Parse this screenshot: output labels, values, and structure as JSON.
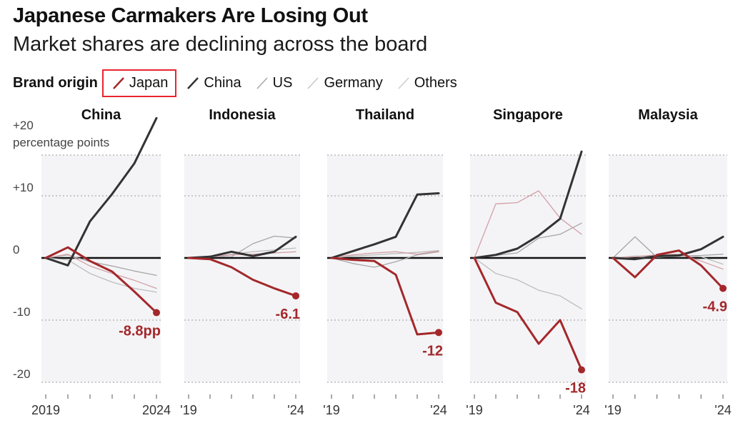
{
  "header": {
    "title": "Japanese Carmakers Are Losing Out",
    "subtitle": "Market shares are declining across the board"
  },
  "legend": {
    "title": "Brand origin",
    "items": [
      {
        "label": "Japan",
        "color": "#a3282b"
      },
      {
        "label": "China",
        "color": "#333333"
      },
      {
        "label": "US",
        "color": "#a6a6a6"
      },
      {
        "label": "Germany",
        "color": "#c7c7c7"
      },
      {
        "label": "Others",
        "color": "#cccccc"
      }
    ]
  },
  "chart_data": {
    "type": "line",
    "y_axis_unit": "percentage points",
    "ylim": [
      -20,
      20
    ],
    "y_ticks": [
      "+20",
      "+10",
      "0",
      "-10",
      "-20"
    ],
    "x": [
      2019,
      2020,
      2021,
      2022,
      2023,
      2024
    ],
    "colors": {
      "Japan": "#a3282b",
      "China": "#333333",
      "US": "#a6a6a6",
      "Germany": "#bdbdbd",
      "Others": "#d2a0a6"
    },
    "panels": [
      {
        "title": "China",
        "x_tick_labels": [
          "2019",
          "2024"
        ],
        "end_label": "-8.8pp",
        "series": [
          {
            "name": "Japan",
            "values": [
              0,
              1.7,
              -0.5,
              -2.2,
              -5.4,
              -8.8
            ]
          },
          {
            "name": "China",
            "values": [
              0,
              -1.2,
              5.9,
              10.3,
              15.2,
              22.5
            ]
          },
          {
            "name": "US",
            "values": [
              0,
              0.5,
              -0.6,
              -1.3,
              -2.1,
              -2.8
            ]
          },
          {
            "name": "Germany",
            "values": [
              0,
              -0.3,
              -2.5,
              -3.9,
              -4.9,
              -5.5
            ]
          },
          {
            "name": "Others",
            "values": [
              0,
              0.6,
              -1.3,
              -2.5,
              -3.6,
              -4.9
            ]
          }
        ]
      },
      {
        "title": "Indonesia",
        "x_tick_labels": [
          "'19",
          "'24"
        ],
        "end_label": "-6.1",
        "series": [
          {
            "name": "Japan",
            "values": [
              0,
              -0.2,
              -1.5,
              -3.5,
              -4.9,
              -6.1
            ]
          },
          {
            "name": "China",
            "values": [
              0,
              0.2,
              1.0,
              0.3,
              1.0,
              3.4
            ]
          },
          {
            "name": "US",
            "values": [
              0,
              0.3,
              0.2,
              2.3,
              3.5,
              3.2
            ]
          },
          {
            "name": "Germany",
            "values": [
              0,
              0.1,
              0.6,
              1.0,
              1.3,
              1.6
            ]
          },
          {
            "name": "Others",
            "values": [
              0,
              0.2,
              0.5,
              0.6,
              0.8,
              1.0
            ]
          }
        ]
      },
      {
        "title": "Thailand",
        "x_tick_labels": [
          "'19",
          "'24"
        ],
        "end_label": "-12",
        "series": [
          {
            "name": "Japan",
            "values": [
              0,
              -0.3,
              -0.5,
              -2.7,
              -12.3,
              -12.0
            ]
          },
          {
            "name": "China",
            "values": [
              0,
              1.1,
              2.2,
              3.4,
              10.2,
              10.4
            ]
          },
          {
            "name": "US",
            "values": [
              0,
              -0.9,
              -1.5,
              -0.6,
              0.5,
              1.0
            ]
          },
          {
            "name": "Germany",
            "values": [
              0,
              0.3,
              0.5,
              0.7,
              0.9,
              1.2
            ]
          },
          {
            "name": "Others",
            "values": [
              0,
              0.5,
              0.8,
              1.0,
              0.6,
              1.1
            ]
          }
        ]
      },
      {
        "title": "Singapore",
        "x_tick_labels": [
          "'19",
          "'24"
        ],
        "end_label": "-18",
        "series": [
          {
            "name": "Japan",
            "values": [
              0,
              -7.2,
              -8.7,
              -13.8,
              -10.0,
              -18.0
            ]
          },
          {
            "name": "China",
            "values": [
              0,
              0.5,
              1.5,
              3.6,
              6.3,
              17.1
            ]
          },
          {
            "name": "US",
            "values": [
              0,
              0.4,
              0.8,
              3.2,
              3.8,
              5.6
            ]
          },
          {
            "name": "Germany",
            "values": [
              0,
              -2.5,
              -3.5,
              -5.2,
              -6.1,
              -8.2
            ]
          },
          {
            "name": "Others",
            "values": [
              0,
              8.7,
              8.9,
              10.8,
              6.4,
              3.8
            ]
          }
        ]
      },
      {
        "title": "Malaysia",
        "x_tick_labels": [
          "'19",
          "'24"
        ],
        "end_label": "-4.9",
        "series": [
          {
            "name": "Japan",
            "values": [
              0,
              -3.1,
              0.5,
              1.2,
              -1.2,
              -4.9
            ]
          },
          {
            "name": "China",
            "values": [
              0,
              -0.2,
              0.3,
              0.4,
              1.4,
              3.4
            ]
          },
          {
            "name": "US",
            "values": [
              0,
              3.4,
              0.1,
              0.3,
              0.4,
              0.6
            ]
          },
          {
            "name": "Germany",
            "values": [
              0,
              0.3,
              0.3,
              0.5,
              0.2,
              -1.0
            ]
          },
          {
            "name": "Others",
            "values": [
              0,
              0.2,
              0.5,
              0.6,
              -0.5,
              -1.8
            ]
          }
        ]
      }
    ]
  }
}
